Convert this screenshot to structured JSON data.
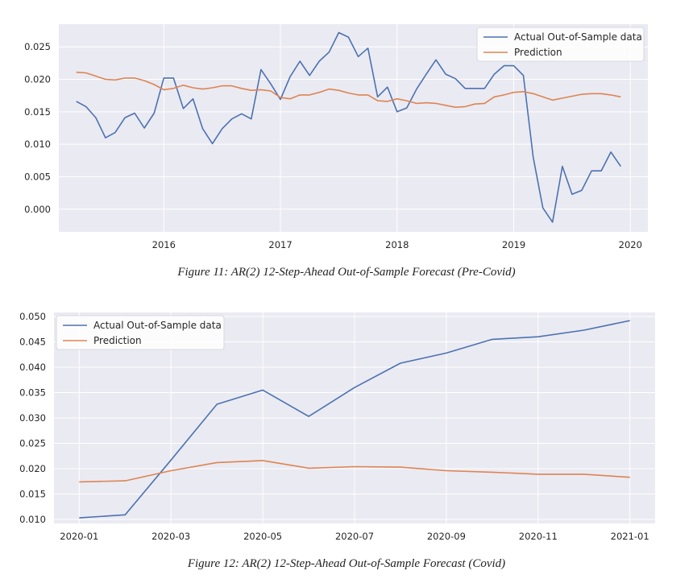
{
  "colors": {
    "actual": "#4c72b0",
    "prediction": "#dd8452",
    "plot_bg": "#eaeaf2",
    "grid": "#ffffff"
  },
  "charts": [
    {
      "caption": "Figure 11: AR(2) 12-Step-Ahead Out-of-Sample Forecast  (Pre-Covid)",
      "chart_data": {
        "type": "line",
        "title": "",
        "xlabel": "",
        "ylabel": "",
        "x_axis": "decimal_year",
        "xlim": [
          2015.1,
          2020.15
        ],
        "ylim": [
          -0.0035,
          0.0285
        ],
        "x_ticks": [
          2016,
          2017,
          2018,
          2019,
          2020
        ],
        "x_tick_labels": [
          "2016",
          "2017",
          "2018",
          "2019",
          "2020"
        ],
        "y_ticks": [
          0.0,
          0.005,
          0.01,
          0.015,
          0.02,
          0.025
        ],
        "y_tick_labels": [
          "0.000",
          "0.005",
          "0.010",
          "0.015",
          "0.020",
          "0.025"
        ],
        "grid": true,
        "legend_position": "top-right",
        "x": [
          2015.25,
          2015.333,
          2015.417,
          2015.5,
          2015.583,
          2015.667,
          2015.75,
          2015.833,
          2015.917,
          2016.0,
          2016.083,
          2016.167,
          2016.25,
          2016.333,
          2016.417,
          2016.5,
          2016.583,
          2016.667,
          2016.75,
          2016.833,
          2016.917,
          2017.0,
          2017.083,
          2017.167,
          2017.25,
          2017.333,
          2017.417,
          2017.5,
          2017.583,
          2017.667,
          2017.75,
          2017.833,
          2017.917,
          2018.0,
          2018.083,
          2018.167,
          2018.25,
          2018.333,
          2018.417,
          2018.5,
          2018.583,
          2018.667,
          2018.75,
          2018.833,
          2018.917,
          2019.0,
          2019.083,
          2019.167,
          2019.25,
          2019.333,
          2019.417,
          2019.5,
          2019.583,
          2019.667,
          2019.75,
          2019.833,
          2019.917
        ],
        "series": [
          {
            "name": "Actual Out-of-Sample data",
            "color_key": "actual",
            "values": [
              0.0166,
              0.0158,
              0.0141,
              0.011,
              0.0118,
              0.0141,
              0.0148,
              0.0125,
              0.0148,
              0.0202,
              0.0202,
              0.0155,
              0.017,
              0.0124,
              0.0101,
              0.0124,
              0.0139,
              0.0147,
              0.0139,
              0.0215,
              0.0193,
              0.0169,
              0.0204,
              0.0228,
              0.0206,
              0.0228,
              0.0242,
              0.0272,
              0.0265,
              0.0235,
              0.0248,
              0.0173,
              0.0188,
              0.015,
              0.0156,
              0.0185,
              0.0208,
              0.023,
              0.0208,
              0.0201,
              0.0186,
              0.0186,
              0.0186,
              0.0208,
              0.0221,
              0.0221,
              0.0206,
              0.008,
              0.0002,
              -0.002,
              0.0066,
              0.0023,
              0.0029,
              0.0059,
              0.0059,
              0.0088,
              0.0066
            ]
          },
          {
            "name": "Prediction",
            "color_key": "prediction",
            "values": [
              0.0211,
              0.021,
              0.0205,
              0.02,
              0.0199,
              0.0202,
              0.0202,
              0.0198,
              0.0192,
              0.0184,
              0.0186,
              0.0191,
              0.0187,
              0.0185,
              0.0187,
              0.019,
              0.019,
              0.0186,
              0.0183,
              0.0184,
              0.0182,
              0.0172,
              0.017,
              0.0176,
              0.0176,
              0.018,
              0.0185,
              0.0183,
              0.0179,
              0.0176,
              0.0176,
              0.0167,
              0.0166,
              0.017,
              0.0167,
              0.0163,
              0.0164,
              0.0163,
              0.016,
              0.0157,
              0.0158,
              0.0162,
              0.0163,
              0.0173,
              0.0176,
              0.018,
              0.0181,
              0.0178,
              0.0173,
              0.0168,
              0.0171,
              0.0174,
              0.0177,
              0.0178,
              0.0178,
              0.0176,
              0.0173
            ]
          }
        ]
      }
    },
    {
      "caption": "Figure 12: AR(2) 12-Step-Ahead Out-of-Sample Forecast (Covid)",
      "chart_data": {
        "type": "line",
        "title": "",
        "xlabel": "",
        "ylabel": "",
        "x_axis": "month_index_from_2020-01",
        "xlim": [
          -0.55,
          12.55
        ],
        "ylim": [
          0.0092,
          0.0508
        ],
        "x_ticks": [
          0,
          2,
          4,
          6,
          8,
          10,
          12
        ],
        "x_tick_labels": [
          "2020-01",
          "2020-03",
          "2020-05",
          "2020-07",
          "2020-09",
          "2020-11",
          "2021-01"
        ],
        "y_ticks": [
          0.01,
          0.015,
          0.02,
          0.025,
          0.03,
          0.035,
          0.04,
          0.045,
          0.05
        ],
        "y_tick_labels": [
          "0.010",
          "0.015",
          "0.020",
          "0.025",
          "0.030",
          "0.035",
          "0.040",
          "0.045",
          "0.050"
        ],
        "grid": true,
        "legend_position": "top-left",
        "x": [
          0,
          1,
          2,
          3,
          4,
          5,
          6,
          7,
          8,
          9,
          10,
          11,
          12
        ],
        "series": [
          {
            "name": "Actual Out-of-Sample data",
            "color_key": "actual",
            "values": [
              0.0103,
              0.0109,
              0.0217,
              0.0327,
              0.0355,
              0.0303,
              0.036,
              0.0408,
              0.0428,
              0.0455,
              0.046,
              0.0473,
              0.0492
            ]
          },
          {
            "name": "Prediction",
            "color_key": "prediction",
            "values": [
              0.0174,
              0.0176,
              0.0196,
              0.0212,
              0.0216,
              0.0201,
              0.0204,
              0.0203,
              0.0196,
              0.0193,
              0.0189,
              0.0189,
              0.0183
            ]
          }
        ]
      }
    }
  ]
}
